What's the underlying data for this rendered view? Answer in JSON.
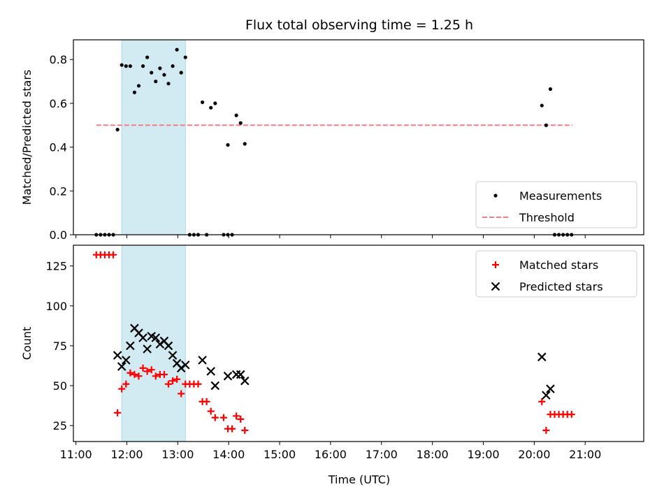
{
  "chart_data": {
    "type": "scatter",
    "title": "Flux total observing time = 1.25 h",
    "xlabel": "Time (UTC)",
    "xlim": [
      "10:57",
      "22:09"
    ],
    "x_ticks": [
      "11:00",
      "12:00",
      "13:00",
      "14:00",
      "15:00",
      "16:00",
      "17:00",
      "18:00",
      "19:00",
      "20:00",
      "21:00"
    ],
    "shaded_region": {
      "start": "11:54",
      "end": "13:09",
      "color": "#add8e6"
    },
    "panels": [
      {
        "name": "ratio",
        "ylabel": "Matched/Predicted stars",
        "ylim": [
          0,
          0.89
        ],
        "y_ticks": [
          "0.0",
          "0.2",
          "0.4",
          "0.6",
          "0.8"
        ],
        "y_tick_values": [
          0,
          0.2,
          0.4,
          0.6,
          0.8
        ],
        "legend": {
          "placement": "lower-right",
          "entries": [
            "Measurements",
            "Threshold"
          ]
        },
        "threshold": {
          "value": 0.5,
          "x_start": "11:24",
          "x_end": "20:45",
          "color": "#f08080"
        },
        "series": [
          {
            "name": "Measurements",
            "marker": "dot",
            "color": "#000000",
            "points": [
              [
                "11:24",
                0
              ],
              [
                "11:29",
                0
              ],
              [
                "11:34",
                0
              ],
              [
                "11:39",
                0
              ],
              [
                "11:44",
                0
              ],
              [
                "11:49",
                0.48
              ],
              [
                "11:54",
                0.775
              ],
              [
                "11:59",
                0.77
              ],
              [
                "12:04",
                0.77
              ],
              [
                "12:09",
                0.65
              ],
              [
                "12:14",
                0.68
              ],
              [
                "12:19",
                0.77
              ],
              [
                "12:24",
                0.81
              ],
              [
                "12:29",
                0.74
              ],
              [
                "12:34",
                0.7
              ],
              [
                "12:39",
                0.76
              ],
              [
                "12:44",
                0.73
              ],
              [
                "12:49",
                0.69
              ],
              [
                "12:54",
                0.77
              ],
              [
                "12:59",
                0.845
              ],
              [
                "13:04",
                0.74
              ],
              [
                "13:09",
                0.81
              ],
              [
                "13:14",
                0
              ],
              [
                "13:19",
                0
              ],
              [
                "13:24",
                0
              ],
              [
                "13:29",
                0.605
              ],
              [
                "13:34",
                0
              ],
              [
                "13:39",
                0.58
              ],
              [
                "13:44",
                0.6
              ],
              [
                "13:54",
                0
              ],
              [
                "13:59",
                0
              ],
              [
                "13:59",
                0.41
              ],
              [
                "14:04",
                0
              ],
              [
                "14:09",
                0.545
              ],
              [
                "14:14",
                0.51
              ],
              [
                "14:19",
                0.415
              ],
              [
                "20:09",
                0.59
              ],
              [
                "20:14",
                0.5
              ],
              [
                "20:19",
                0.665
              ],
              [
                "20:24",
                0
              ],
              [
                "20:29",
                0
              ],
              [
                "20:34",
                0
              ],
              [
                "20:39",
                0
              ],
              [
                "20:44",
                0
              ]
            ]
          }
        ]
      },
      {
        "name": "count",
        "ylabel": "Count",
        "ylim": [
          15,
          138
        ],
        "y_ticks": [
          "25",
          "50",
          "75",
          "100",
          "125"
        ],
        "y_tick_values": [
          25,
          50,
          75,
          100,
          125
        ],
        "legend": {
          "placement": "top-right",
          "entries": [
            "Matched stars",
            "Predicted stars"
          ]
        },
        "series": [
          {
            "name": "Matched stars",
            "marker": "plus",
            "color": "#ff0000",
            "points": [
              [
                "11:24",
                132
              ],
              [
                "11:29",
                132
              ],
              [
                "11:34",
                132
              ],
              [
                "11:39",
                132
              ],
              [
                "11:44",
                132
              ],
              [
                "11:49",
                33
              ],
              [
                "11:54",
                48
              ],
              [
                "11:59",
                51
              ],
              [
                "12:04",
                58
              ],
              [
                "12:09",
                57
              ],
              [
                "12:14",
                56
              ],
              [
                "12:19",
                61
              ],
              [
                "12:24",
                59
              ],
              [
                "12:29",
                60
              ],
              [
                "12:34",
                56
              ],
              [
                "12:39",
                57
              ],
              [
                "12:44",
                57
              ],
              [
                "12:49",
                51
              ],
              [
                "12:54",
                53
              ],
              [
                "12:59",
                54
              ],
              [
                "13:04",
                45
              ],
              [
                "13:09",
                51
              ],
              [
                "13:14",
                51
              ],
              [
                "13:19",
                51
              ],
              [
                "13:24",
                51
              ],
              [
                "13:29",
                40
              ],
              [
                "13:34",
                40
              ],
              [
                "13:39",
                34
              ],
              [
                "13:44",
                30
              ],
              [
                "13:54",
                30
              ],
              [
                "13:59",
                23
              ],
              [
                "14:04",
                23
              ],
              [
                "14:09",
                31
              ],
              [
                "14:14",
                29
              ],
              [
                "14:19",
                22
              ],
              [
                "20:09",
                40
              ],
              [
                "20:14",
                22
              ],
              [
                "20:19",
                32
              ],
              [
                "20:24",
                32
              ],
              [
                "20:29",
                32
              ],
              [
                "20:34",
                32
              ],
              [
                "20:39",
                32
              ],
              [
                "20:44",
                32
              ]
            ]
          },
          {
            "name": "Predicted stars",
            "marker": "x",
            "color": "#000000",
            "points": [
              [
                "11:49",
                69
              ],
              [
                "11:54",
                62
              ],
              [
                "11:59",
                66
              ],
              [
                "12:04",
                75
              ],
              [
                "12:09",
                86
              ],
              [
                "12:14",
                83
              ],
              [
                "12:19",
                80
              ],
              [
                "12:24",
                73
              ],
              [
                "12:29",
                81
              ],
              [
                "12:34",
                80
              ],
              [
                "12:39",
                76
              ],
              [
                "12:44",
                78
              ],
              [
                "12:49",
                75
              ],
              [
                "12:54",
                69
              ],
              [
                "12:59",
                64
              ],
              [
                "13:04",
                61
              ],
              [
                "13:09",
                63
              ],
              [
                "13:29",
                66
              ],
              [
                "13:39",
                59
              ],
              [
                "13:44",
                50
              ],
              [
                "13:59",
                56
              ],
              [
                "14:09",
                57
              ],
              [
                "14:14",
                57
              ],
              [
                "14:19",
                53
              ],
              [
                "20:09",
                68
              ],
              [
                "20:14",
                44
              ],
              [
                "20:19",
                48
              ]
            ]
          }
        ]
      }
    ]
  }
}
